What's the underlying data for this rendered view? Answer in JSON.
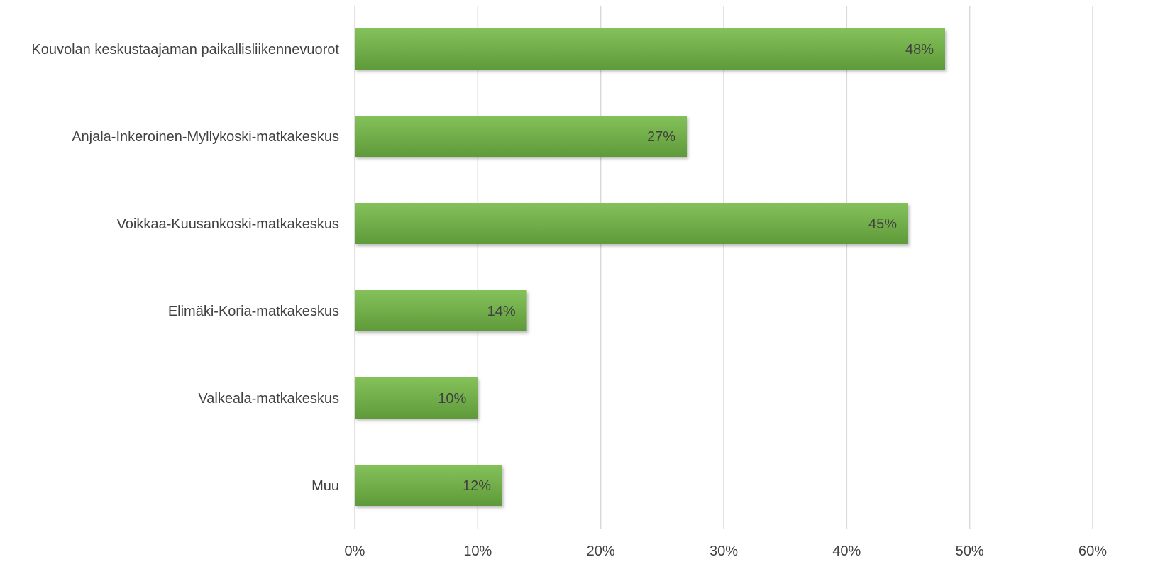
{
  "chart_data": {
    "type": "bar",
    "orientation": "horizontal",
    "categories": [
      "Kouvolan keskustaajaman paikallisliikennevuorot",
      "Anjala-Inkeroinen-Myllykoski-matkakeskus",
      "Voikkaa-Kuusankoski-matkakeskus",
      "Elimäki-Koria-matkakeskus",
      "Valkeala-matkakeskus",
      "Muu"
    ],
    "values": [
      48,
      27,
      45,
      14,
      10,
      12
    ],
    "data_labels": [
      "48%",
      "27%",
      "45%",
      "14%",
      "10%",
      "12%"
    ],
    "xlim": [
      0,
      60
    ],
    "x_ticks": [
      0,
      10,
      20,
      30,
      40,
      50,
      60
    ],
    "x_tick_labels": [
      "0%",
      "10%",
      "20%",
      "30%",
      "40%",
      "50%",
      "60%"
    ],
    "grid": true,
    "legend": "none",
    "colors": {
      "bar": "#70ad47",
      "bar_light": "#84c15a",
      "bar_dark": "#5f9a3a",
      "grid": "#d9d9d9",
      "text": "#404040"
    }
  }
}
